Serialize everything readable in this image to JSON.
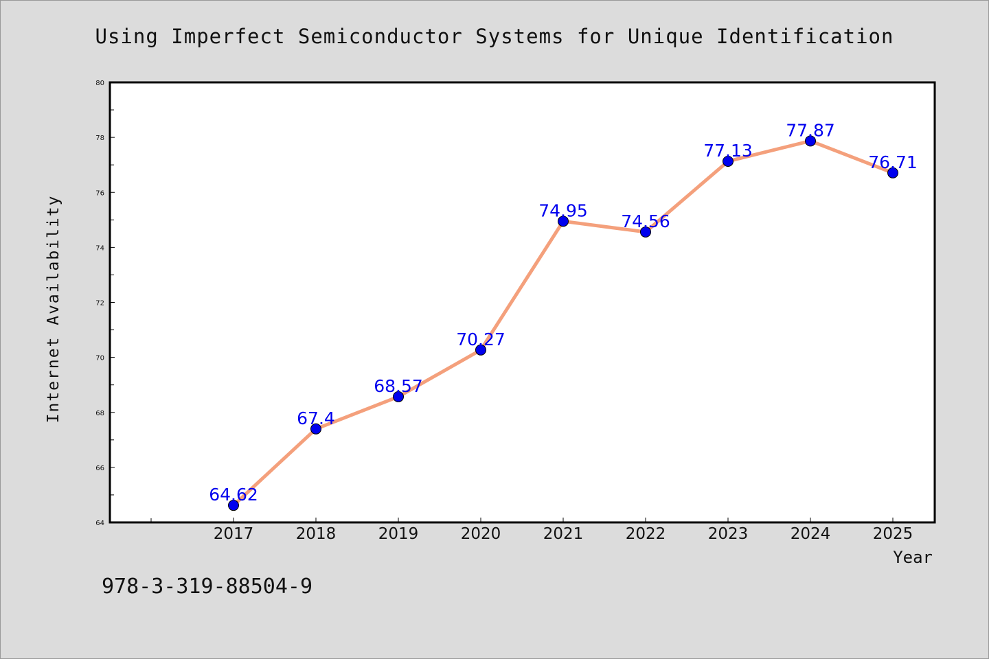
{
  "chart_data": {
    "type": "line",
    "title": "Using Imperfect Semiconductor Systems for Unique Identification",
    "xlabel": "Year",
    "ylabel": "Internet Availability",
    "categories": [
      "2017",
      "2018",
      "2019",
      "2020",
      "2021",
      "2022",
      "2023",
      "2024",
      "2025"
    ],
    "series": [
      {
        "values": [
          64.62,
          67.4,
          68.57,
          70.27,
          74.95,
          74.56,
          77.13,
          77.87,
          76.71
        ]
      }
    ],
    "data_labels": [
      "64.62",
      "67.4",
      "68.57",
      "70.27",
      "74.95",
      "74.56",
      "77.13",
      "77.87",
      "76.71"
    ],
    "yticks": [
      "64",
      "66",
      "68",
      "70",
      "72",
      "74",
      "76",
      "78",
      "80"
    ],
    "ylim": [
      64,
      80
    ],
    "grid": false,
    "colors": {
      "line": "#f4a07c",
      "marker": "#0000ee",
      "label": "#0000ee",
      "background": "#dcdcdc",
      "plot_background": "#ffffff"
    }
  },
  "footer": {
    "isbn": "978-3-319-88504-9"
  }
}
